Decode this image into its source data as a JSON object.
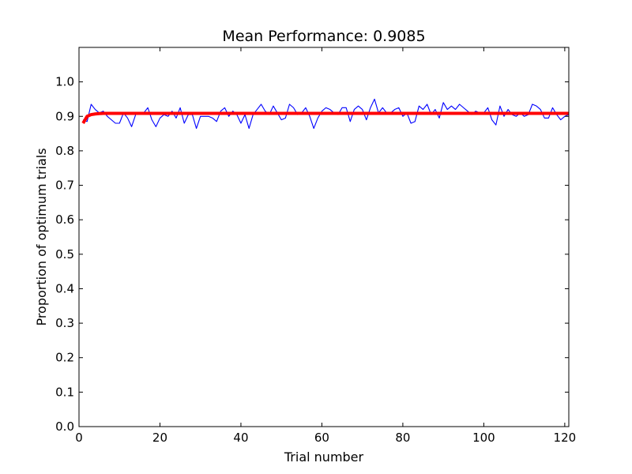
{
  "chart_data": {
    "type": "line",
    "title": "Mean Performance: 0.9085",
    "xlabel": "Trial number",
    "ylabel": "Proportion of optimum trials",
    "xlim": [
      0,
      121
    ],
    "ylim": [
      0.0,
      1.1
    ],
    "xticks": [
      0,
      20,
      40,
      60,
      80,
      100,
      120
    ],
    "xtick_labels": [
      "0",
      "20",
      "40",
      "60",
      "80",
      "100",
      "120"
    ],
    "yticks": [
      0.0,
      0.1,
      0.2,
      0.3,
      0.4,
      0.5,
      0.6,
      0.7,
      0.8,
      0.9,
      1.0
    ],
    "ytick_labels": [
      "0.0",
      "0.1",
      "0.2",
      "0.3",
      "0.4",
      "0.5",
      "0.6",
      "0.7",
      "0.8",
      "0.9",
      "1.0"
    ],
    "grid": false,
    "series": [
      {
        "color": "#0000ff",
        "x": [
          1,
          2,
          3,
          4,
          5,
          6,
          7,
          8,
          9,
          10,
          11,
          12,
          13,
          14,
          15,
          16,
          17,
          18,
          19,
          20,
          21,
          22,
          23,
          24,
          25,
          26,
          27,
          28,
          29,
          30,
          31,
          32,
          33,
          34,
          35,
          36,
          37,
          38,
          39,
          40,
          41,
          42,
          43,
          44,
          45,
          46,
          47,
          48,
          49,
          50,
          51,
          52,
          53,
          54,
          55,
          56,
          57,
          58,
          59,
          60,
          61,
          62,
          63,
          64,
          65,
          66,
          67,
          68,
          69,
          70,
          71,
          72,
          73,
          74,
          75,
          76,
          77,
          78,
          79,
          80,
          81,
          82,
          83,
          84,
          85,
          86,
          87,
          88,
          89,
          90,
          91,
          92,
          93,
          94,
          95,
          96,
          97,
          98,
          99,
          100,
          101,
          102,
          103,
          104,
          105,
          106,
          107,
          108,
          109,
          110,
          111,
          112,
          113,
          114,
          115,
          116,
          117,
          118,
          119,
          120,
          121
        ],
        "values": [
          0.89,
          0.885,
          0.935,
          0.92,
          0.91,
          0.915,
          0.9,
          0.89,
          0.88,
          0.88,
          0.91,
          0.895,
          0.87,
          0.905,
          0.91,
          0.91,
          0.925,
          0.89,
          0.87,
          0.895,
          0.905,
          0.9,
          0.915,
          0.895,
          0.925,
          0.88,
          0.905,
          0.905,
          0.865,
          0.9,
          0.9,
          0.9,
          0.895,
          0.885,
          0.915,
          0.925,
          0.9,
          0.915,
          0.905,
          0.88,
          0.905,
          0.865,
          0.905,
          0.92,
          0.935,
          0.915,
          0.905,
          0.93,
          0.91,
          0.89,
          0.895,
          0.935,
          0.925,
          0.905,
          0.91,
          0.925,
          0.9,
          0.865,
          0.895,
          0.915,
          0.925,
          0.92,
          0.91,
          0.905,
          0.925,
          0.925,
          0.885,
          0.92,
          0.93,
          0.92,
          0.89,
          0.925,
          0.95,
          0.91,
          0.925,
          0.91,
          0.91,
          0.92,
          0.925,
          0.9,
          0.91,
          0.88,
          0.885,
          0.93,
          0.92,
          0.935,
          0.905,
          0.92,
          0.895,
          0.94,
          0.92,
          0.93,
          0.92,
          0.935,
          0.925,
          0.915,
          0.905,
          0.915,
          0.91,
          0.91,
          0.925,
          0.89,
          0.875,
          0.93,
          0.9,
          0.92,
          0.905,
          0.9,
          0.91,
          0.9,
          0.905,
          0.935,
          0.93,
          0.92,
          0.895,
          0.895,
          0.925,
          0.905,
          0.89,
          0.9,
          0.905
        ]
      },
      {
        "color": "#ff0000",
        "x": [
          1,
          2,
          3,
          4,
          5,
          6,
          8,
          10,
          15,
          20,
          30,
          40,
          50,
          60,
          70,
          80,
          90,
          100,
          110,
          121
        ],
        "values": [
          0.88,
          0.9,
          0.905,
          0.907,
          0.908,
          0.9085,
          0.9085,
          0.9085,
          0.9085,
          0.9085,
          0.9085,
          0.9085,
          0.9085,
          0.9085,
          0.9085,
          0.9085,
          0.9085,
          0.9085,
          0.9085,
          0.9085
        ]
      }
    ]
  }
}
